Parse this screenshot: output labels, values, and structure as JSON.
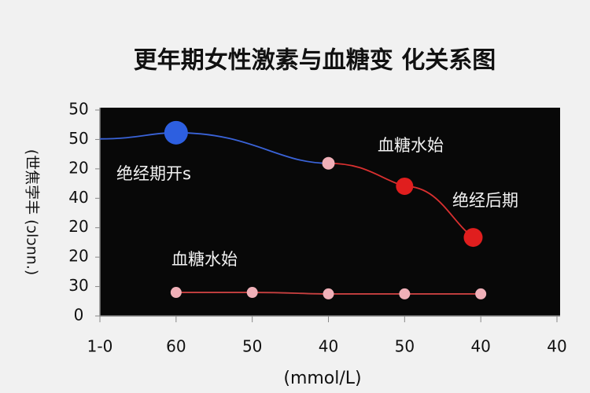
{
  "chart_data": {
    "type": "line",
    "title": "更年期女性激素与血糖变 化关系图",
    "ylabel": "(世焦孛丰 (ɔlɔnn.)",
    "xlabel": "(mmol/L)",
    "xlim": [
      0,
      6
    ],
    "xticks": [
      {
        "value": 0,
        "label": "1-0"
      },
      {
        "value": 1,
        "label": "60"
      },
      {
        "value": 2,
        "label": "50"
      },
      {
        "value": 3,
        "label": "40"
      },
      {
        "value": 4,
        "label": "50"
      },
      {
        "value": 5,
        "label": "40"
      },
      {
        "value": 6,
        "label": "40"
      }
    ],
    "ylim": [
      0,
      7
    ],
    "yticks": [
      {
        "value": 0,
        "label": "0"
      },
      {
        "value": 1,
        "label": "30"
      },
      {
        "value": 2,
        "label": "20"
      },
      {
        "value": 3,
        "label": "20"
      },
      {
        "value": 4,
        "label": "40"
      },
      {
        "value": 5,
        "label": "20"
      },
      {
        "value": 6,
        "label": "50"
      },
      {
        "value": 7,
        "label": "50"
      }
    ],
    "series": [
      {
        "color": "#3a63d8",
        "x": [
          0,
          1,
          3
        ],
        "values": [
          6.02,
          6.23,
          5.19
        ],
        "point_colors": [
          null,
          "#2d5fe0",
          null
        ]
      },
      {
        "color": "#d93030",
        "x": [
          3,
          4,
          4.9
        ],
        "values": [
          5.19,
          4.41,
          2.67
        ],
        "point_colors": [
          "#f0b0b8",
          "#e01e1e",
          "#e01e1e"
        ]
      },
      {
        "color": "#c84040",
        "x": [
          1,
          2,
          3,
          4,
          5
        ],
        "values": [
          0.8,
          0.8,
          0.75,
          0.75,
          0.75
        ],
        "point_colors": [
          "#f0b0b8",
          "#f0b0b8",
          "#f0b0b8",
          "#f0b0b8",
          "#f0b0b8"
        ]
      }
    ],
    "annotations": [
      "绝经期开s",
      "血糖水始",
      "绝经后期",
      "血糖水始"
    ]
  }
}
